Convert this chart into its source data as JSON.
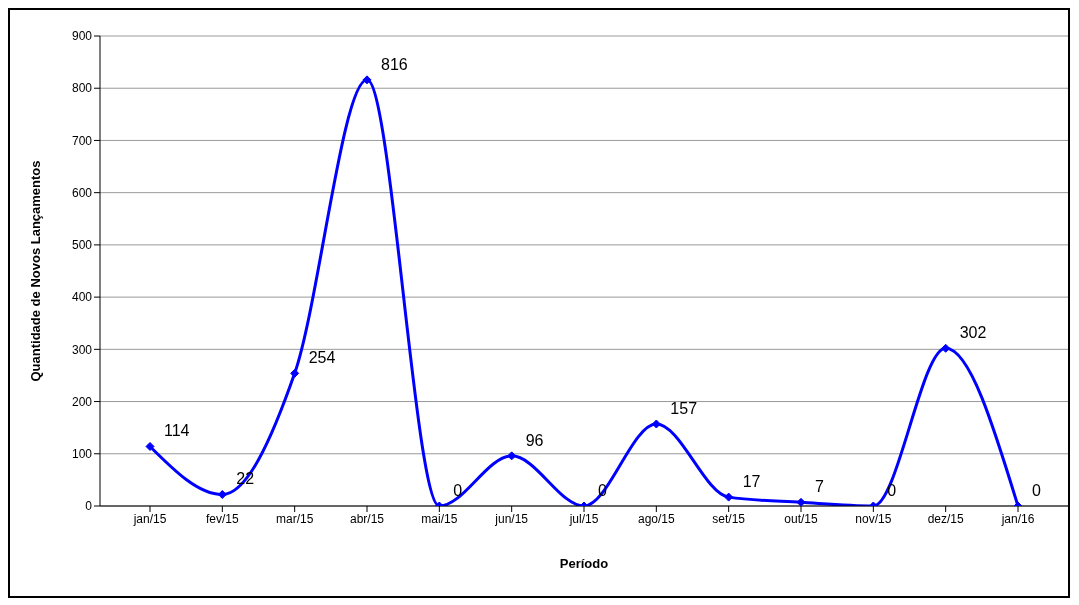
{
  "chart_data": {
    "type": "line",
    "xlabel": "Período",
    "ylabel": "Quantidade de Novos Lançamentos",
    "categories": [
      "jan/15",
      "fev/15",
      "mar/15",
      "abr/15",
      "mai/15",
      "jun/15",
      "jul/15",
      "ago/15",
      "set/15",
      "out/15",
      "nov/15",
      "dez/15",
      "jan/16"
    ],
    "series": [
      {
        "color": "#0000ff",
        "values": [
          114,
          22,
          254,
          816,
          0,
          96,
          0,
          157,
          17,
          7,
          0,
          302,
          0
        ]
      }
    ],
    "ylim": [
      0,
      900
    ],
    "yticks": [
      0,
      100,
      200,
      300,
      400,
      500,
      600,
      700,
      800,
      900
    ],
    "grid": "y",
    "marker": "diamond",
    "data_labels": true,
    "legend": false
  }
}
